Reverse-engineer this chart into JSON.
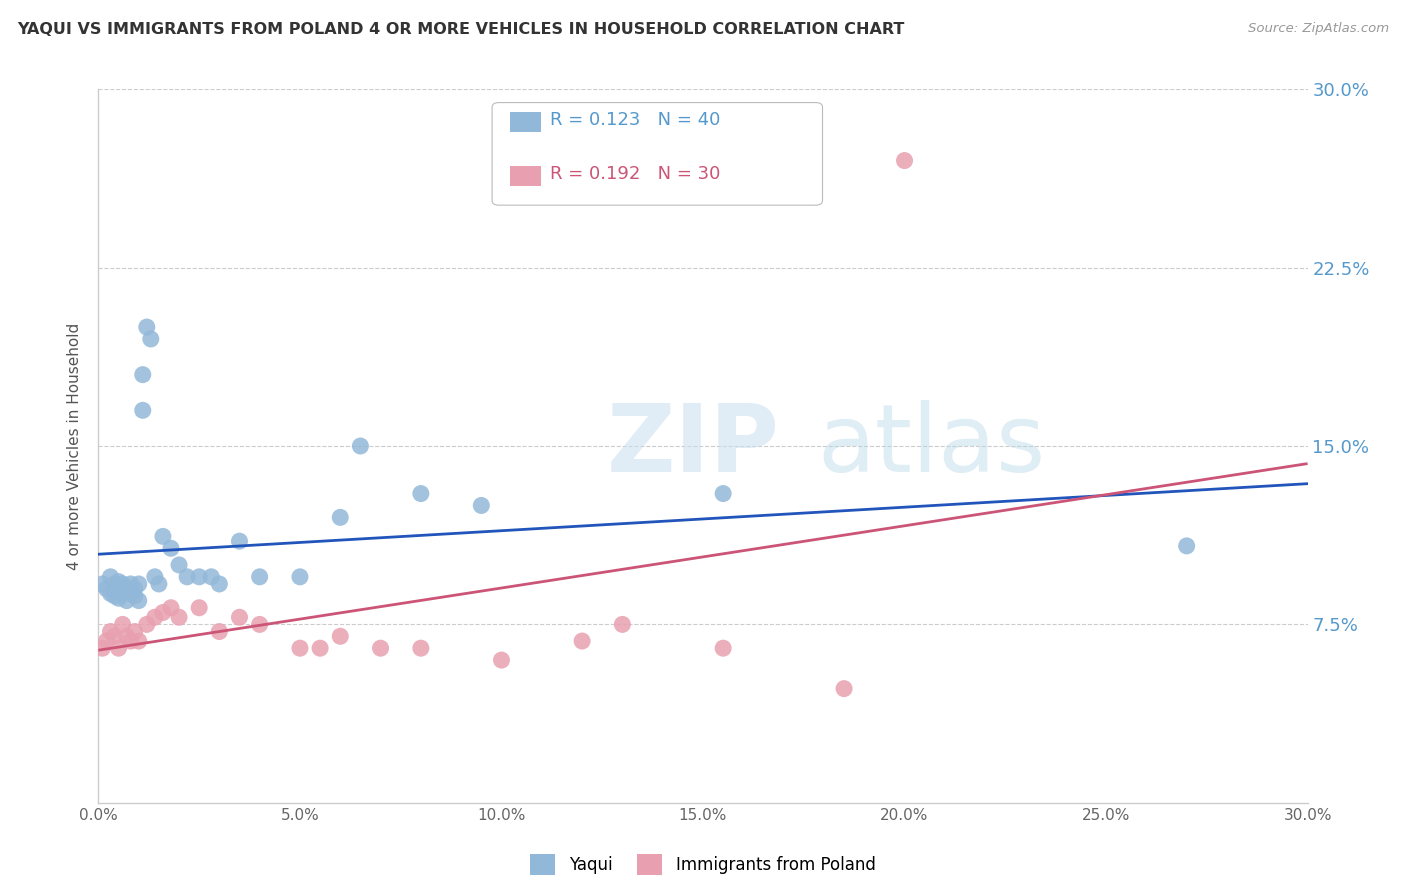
{
  "title": "YAQUI VS IMMIGRANTS FROM POLAND 4 OR MORE VEHICLES IN HOUSEHOLD CORRELATION CHART",
  "source": "Source: ZipAtlas.com",
  "ylabel": "4 or more Vehicles in Household",
  "xlim": [
    0.0,
    0.3
  ],
  "ylim": [
    0.0,
    0.3
  ],
  "xticks": [
    0.0,
    0.05,
    0.1,
    0.15,
    0.2,
    0.25,
    0.3
  ],
  "xtick_labels": [
    "0.0%",
    "5.0%",
    "10.0%",
    "15.0%",
    "20.0%",
    "25.0%",
    "30.0%"
  ],
  "ytick_vals": [
    0.075,
    0.15,
    0.225,
    0.3
  ],
  "ytick_labels_right": [
    "7.5%",
    "15.0%",
    "22.5%",
    "30.0%"
  ],
  "yaqui_color": "#92b8d9",
  "poland_color": "#e8a0b0",
  "trend_blue": "#2255bb",
  "trend_pink": "#cc5577",
  "yaqui_x": [
    0.001,
    0.002,
    0.003,
    0.003,
    0.004,
    0.004,
    0.005,
    0.005,
    0.006,
    0.006,
    0.007,
    0.007,
    0.008,
    0.008,
    0.009,
    0.009,
    0.01,
    0.01,
    0.011,
    0.011,
    0.012,
    0.013,
    0.014,
    0.015,
    0.016,
    0.018,
    0.02,
    0.022,
    0.025,
    0.028,
    0.03,
    0.035,
    0.04,
    0.05,
    0.06,
    0.065,
    0.08,
    0.095,
    0.155,
    0.27
  ],
  "yaqui_y": [
    0.092,
    0.09,
    0.095,
    0.088,
    0.092,
    0.087,
    0.093,
    0.086,
    0.092,
    0.088,
    0.09,
    0.085,
    0.092,
    0.088,
    0.09,
    0.087,
    0.092,
    0.085,
    0.18,
    0.165,
    0.2,
    0.195,
    0.095,
    0.092,
    0.112,
    0.107,
    0.1,
    0.095,
    0.095,
    0.095,
    0.092,
    0.11,
    0.095,
    0.095,
    0.12,
    0.15,
    0.13,
    0.125,
    0.13,
    0.108
  ],
  "poland_x": [
    0.001,
    0.002,
    0.003,
    0.004,
    0.005,
    0.006,
    0.007,
    0.008,
    0.009,
    0.01,
    0.012,
    0.014,
    0.016,
    0.018,
    0.02,
    0.025,
    0.03,
    0.035,
    0.04,
    0.05,
    0.055,
    0.06,
    0.07,
    0.08,
    0.1,
    0.12,
    0.13,
    0.155,
    0.185,
    0.2
  ],
  "poland_y": [
    0.065,
    0.068,
    0.072,
    0.07,
    0.065,
    0.075,
    0.07,
    0.068,
    0.072,
    0.068,
    0.075,
    0.078,
    0.08,
    0.082,
    0.078,
    0.082,
    0.072,
    0.078,
    0.075,
    0.065,
    0.065,
    0.07,
    0.065,
    0.065,
    0.06,
    0.068,
    0.075,
    0.065,
    0.048,
    0.27
  ],
  "watermark_zip": "ZIP",
  "watermark_atlas": "atlas",
  "background_color": "#ffffff",
  "grid_color": "#cccccc",
  "legend_R1": "R = 0.123",
  "legend_N1": "N = 40",
  "legend_R2": "R = 0.192",
  "legend_N2": "N = 30"
}
